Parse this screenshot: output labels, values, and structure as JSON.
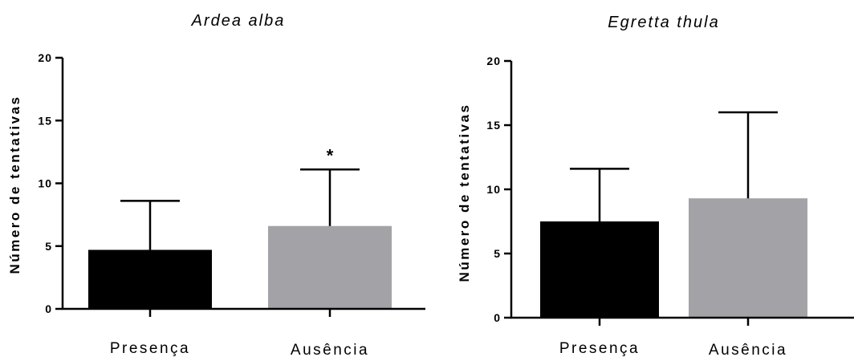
{
  "chart_data": [
    {
      "type": "bar",
      "title": "Ardea alba",
      "ylabel": "Número de tentativas",
      "xlabel": "",
      "categories": [
        "Presença",
        "Ausência"
      ],
      "values": [
        4.7,
        6.6
      ],
      "error_upper": [
        8.6,
        11.1
      ],
      "bar_colors": [
        "#000000",
        "#a3a2a7"
      ],
      "annotations": [
        "",
        "*"
      ],
      "ylim": [
        0,
        20
      ],
      "yticks": [
        "0",
        "5",
        "10",
        "15",
        "20"
      ],
      "ytick_values": [
        0,
        5,
        10,
        15,
        20
      ],
      "grid": false,
      "legend": "none"
    },
    {
      "type": "bar",
      "title": "Egretta thula",
      "ylabel": "Número de tentativas",
      "xlabel": "",
      "categories": [
        "Presença",
        "Ausência"
      ],
      "values": [
        7.5,
        9.3
      ],
      "error_upper": [
        11.6,
        16.0
      ],
      "bar_colors": [
        "#000000",
        "#a3a2a7"
      ],
      "annotations": [
        "",
        ""
      ],
      "ylim": [
        0,
        20
      ],
      "yticks": [
        "0",
        "5",
        "10",
        "15",
        "20"
      ],
      "ytick_values": [
        0,
        5,
        10,
        15,
        20
      ],
      "grid": false,
      "legend": "none"
    }
  ]
}
